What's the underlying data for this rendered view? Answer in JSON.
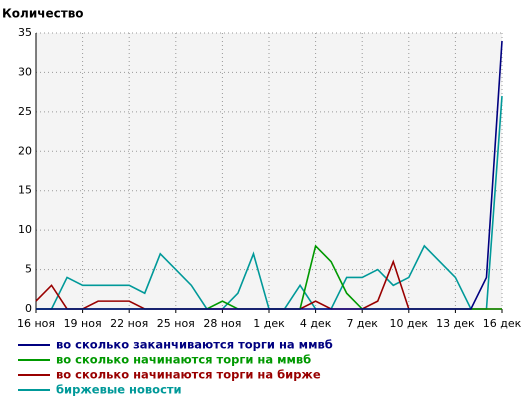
{
  "chart_data": {
    "type": "line",
    "title": "Количество",
    "categories": [
      "16 ноя",
      null,
      null,
      "19 ноя",
      null,
      null,
      "22 ноя",
      null,
      null,
      "25 ноя",
      null,
      null,
      "28 ноя",
      null,
      null,
      "1 дек",
      null,
      null,
      "4 дек",
      null,
      null,
      "7 дек",
      null,
      null,
      "10 дек",
      null,
      null,
      "13 дек",
      null,
      null,
      "16 дек"
    ],
    "ylim": [
      0,
      35
    ],
    "yticks": [
      0,
      5,
      10,
      15,
      20,
      25,
      30,
      35
    ],
    "grid": true,
    "legend": "bottom",
    "series": [
      {
        "name": "во сколько заканчиваются торги на ммвб",
        "color": "#000080",
        "values": [
          0,
          0,
          0,
          0,
          0,
          0,
          0,
          0,
          0,
          0,
          0,
          0,
          0,
          0,
          0,
          0,
          0,
          0,
          0,
          0,
          0,
          0,
          0,
          0,
          0,
          0,
          0,
          0,
          0,
          4,
          34
        ]
      },
      {
        "name": "во сколько начинаются торги на ммвб",
        "color": "#009900",
        "values": [
          0,
          0,
          0,
          0,
          0,
          0,
          0,
          0,
          0,
          0,
          0,
          0,
          1,
          0,
          0,
          0,
          0,
          0,
          8,
          6,
          2,
          0,
          0,
          0,
          0,
          0,
          0,
          0,
          0,
          0,
          0
        ]
      },
      {
        "name": "во сколько начинаются торги на бирже",
        "color": "#990000",
        "values": [
          1,
          3,
          0,
          0,
          1,
          1,
          1,
          0,
          0,
          0,
          0,
          0,
          0,
          0,
          0,
          0,
          0,
          0,
          1,
          0,
          0,
          0,
          1,
          6,
          0,
          0,
          0,
          0,
          0,
          0,
          0
        ]
      },
      {
        "name": "биржевые новости",
        "color": "#009999",
        "values": [
          0,
          0,
          4,
          3,
          3,
          3,
          3,
          2,
          7,
          5,
          3,
          0,
          0,
          2,
          7,
          0,
          0,
          3,
          0,
          0,
          4,
          4,
          5,
          3,
          4,
          8,
          6,
          4,
          0,
          0,
          27
        ]
      }
    ]
  }
}
